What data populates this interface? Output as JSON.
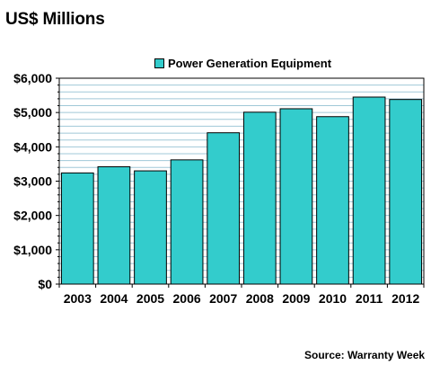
{
  "chart_data": {
    "type": "bar",
    "title": "US$ Millions",
    "categories": [
      "2003",
      "2004",
      "2005",
      "2006",
      "2007",
      "2008",
      "2009",
      "2010",
      "2011",
      "2012"
    ],
    "series": [
      {
        "name": "Power Generation Equipment",
        "values": [
          3240,
          3420,
          3300,
          3620,
          4410,
          5010,
          5110,
          4880,
          5450,
          5380
        ]
      }
    ],
    "ylim": [
      0,
      6000
    ],
    "ytick_labels": [
      "$0",
      "$1,000",
      "$2,000",
      "$3,000",
      "$4,000",
      "$5,000",
      "$6,000"
    ],
    "ytick_values": [
      0,
      1000,
      2000,
      3000,
      4000,
      5000,
      6000
    ],
    "minor_grid_step": 200,
    "grid": true,
    "legend_position": "top-center",
    "bar_color": "#33cccc",
    "grid_color": "#a0c8d8",
    "source": "Source: Warranty Week"
  }
}
